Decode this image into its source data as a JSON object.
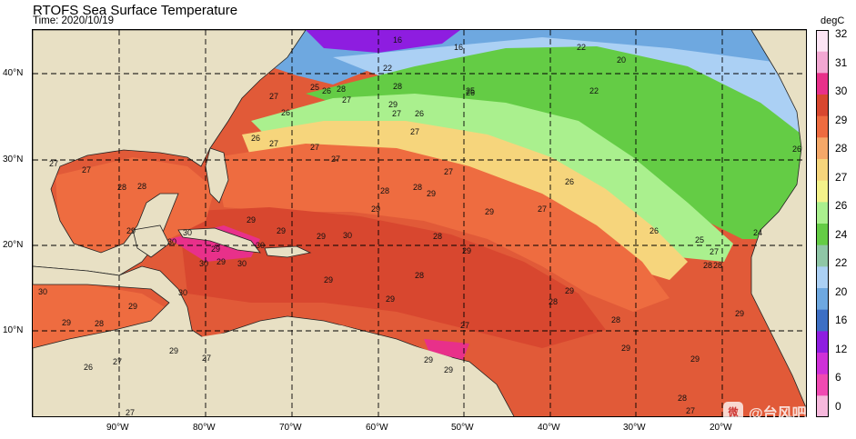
{
  "title": "RTOFS Sea Surface Temperature",
  "subtitle": "Time: 2020/10/19",
  "colorbar": {
    "unit": "degC",
    "ticks": [
      "32",
      "31",
      "30",
      "29",
      "28",
      "27",
      "26",
      "24",
      "22",
      "20",
      "16",
      "12",
      "6",
      "0"
    ],
    "colors": [
      "#fce4f4",
      "#f2a7d2",
      "#e8308a",
      "#d8472f",
      "#ee6c40",
      "#f5a868",
      "#f6d57c",
      "#f4f28a",
      "#aaf08e",
      "#64cc45",
      "#8fc6a6",
      "#abd0f4",
      "#6ea8e0",
      "#3d6fc4",
      "#8e1de0",
      "#cf30d8",
      "#f04ab2",
      "#f6b8dc"
    ]
  },
  "axes": {
    "lat_labels": [
      "40°N",
      "30°N",
      "20°N",
      "10°N"
    ],
    "lon_labels": [
      "90°W",
      "80°W",
      "70°W",
      "60°W",
      "50°W",
      "40°W",
      "30°W",
      "20°W"
    ]
  },
  "contour_labels": [
    "16",
    "16",
    "22",
    "20",
    "22",
    "22",
    "26",
    "28",
    "27",
    "25",
    "26",
    "27",
    "28",
    "27",
    "27",
    "29",
    "26",
    "27",
    "26",
    "27",
    "26",
    "25",
    "27",
    "28",
    "29",
    "28",
    "29",
    "27",
    "26",
    "29",
    "30",
    "29",
    "28",
    "30",
    "29",
    "30",
    "30",
    "29",
    "30",
    "29",
    "29",
    "30",
    "29",
    "28",
    "30",
    "29",
    "28",
    "29",
    "29",
    "28",
    "29",
    "28",
    "29",
    "29",
    "28",
    "29",
    "28",
    "27",
    "28",
    "27",
    "25",
    "26",
    "27",
    "26",
    "24",
    "27",
    "29",
    "29",
    "27",
    "27",
    "28",
    "28",
    "27",
    "26",
    "27",
    "29",
    "30",
    "29",
    "29",
    "27"
  ],
  "watermark": "@台风吧",
  "colors": {
    "land": "#e8e0c4",
    "ocean_warm": "#e55a3a",
    "ocean_cool": "#6ea8e0"
  },
  "legend_placement": "right"
}
